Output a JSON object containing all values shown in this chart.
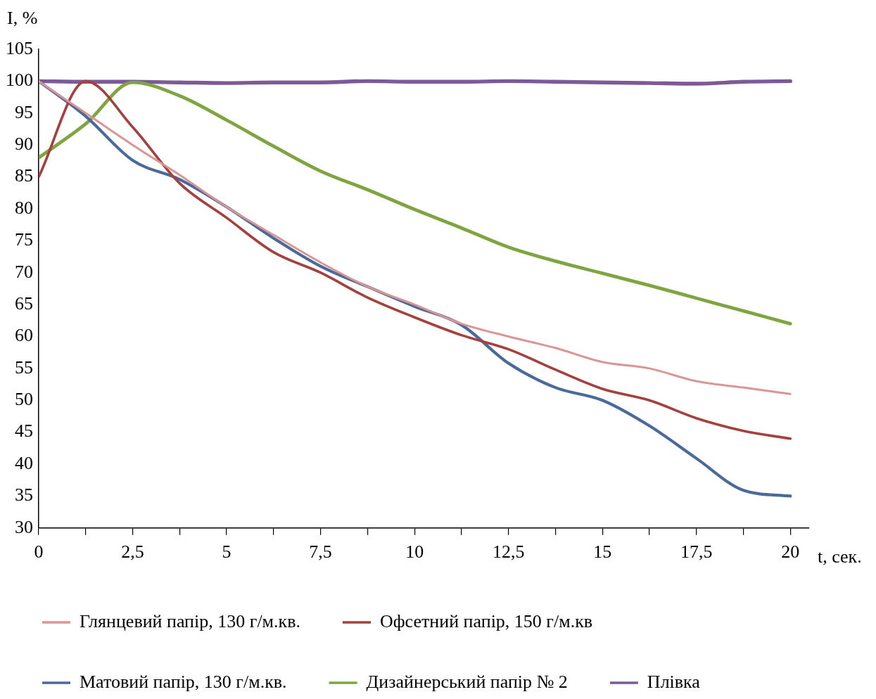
{
  "chart_data": {
    "type": "line",
    "xlabel": "t, сек.",
    "ylabel": "I, %",
    "x": [
      0,
      1.25,
      2.5,
      3.75,
      5,
      6.25,
      7.5,
      8.75,
      10,
      11.25,
      12.5,
      13.75,
      15,
      16.25,
      17.5,
      18.75,
      20
    ],
    "series": [
      {
        "name": "Глянцевий папір, 130 г/м.кв.",
        "color": "#d99694",
        "values": [
          100,
          95,
          90,
          85.3,
          80.3,
          75.9,
          71.6,
          67.8,
          65,
          62,
          60,
          58.2,
          56,
          55,
          53,
          52,
          51
        ]
      },
      {
        "name": "Офсетний папір, 150 г/м.кв",
        "color": "#a4403d",
        "values": [
          85,
          100,
          92.8,
          84,
          78.6,
          73.2,
          70,
          66.1,
          63,
          60.2,
          58,
          54.8,
          51.8,
          50,
          47.2,
          45.2,
          44
        ]
      },
      {
        "name": "Матовий папір, 130 г/м.кв.",
        "color": "#4a6a9c",
        "values": [
          100,
          94.5,
          87.6,
          84.6,
          80.3,
          75.4,
          71,
          67.8,
          64.7,
          61.8,
          55.8,
          52,
          50,
          46,
          40.9,
          35.9,
          35
        ]
      },
      {
        "name": "Дизайнерський папір № 2",
        "color": "#7ea540",
        "values": [
          88,
          93.3,
          99.8,
          97.7,
          93.9,
          89.8,
          85.9,
          83,
          79.9,
          77,
          74,
          71.8,
          69.9,
          68,
          66,
          64,
          62
        ]
      },
      {
        "name": "Плівка",
        "color": "#7d5a96",
        "values": [
          100,
          99.9,
          99.9,
          99.8,
          99.7,
          99.8,
          99.8,
          100,
          99.9,
          99.9,
          100,
          99.9,
          99.8,
          99.7,
          99.6,
          99.9,
          100
        ]
      }
    ],
    "xlim": [
      0,
      20.5
    ],
    "xticks": [
      0,
      {
        "value": 1.25,
        "label": null
      },
      {
        "value": 2.5,
        "label": "2,5"
      },
      {
        "value": 3.75,
        "label": null
      },
      5,
      {
        "value": 6.25,
        "label": null
      },
      {
        "value": 7.5,
        "label": "7,5"
      },
      {
        "value": 8.75,
        "label": null
      },
      10,
      {
        "value": 11.25,
        "label": null
      },
      {
        "value": 12.5,
        "label": "12,5"
      },
      {
        "value": 13.75,
        "label": null
      },
      15,
      {
        "value": 16.25,
        "label": null
      },
      {
        "value": 17.5,
        "label": "17,5"
      },
      {
        "value": 18.75,
        "label": null
      },
      20
    ],
    "ylim": [
      30,
      105
    ],
    "yticks": [
      30,
      35,
      40,
      45,
      50,
      55,
      60,
      65,
      70,
      75,
      80,
      85,
      90,
      95,
      100,
      105
    ],
    "grid": false,
    "legend": "bottom",
    "marker": "none",
    "line_style": "solid"
  }
}
